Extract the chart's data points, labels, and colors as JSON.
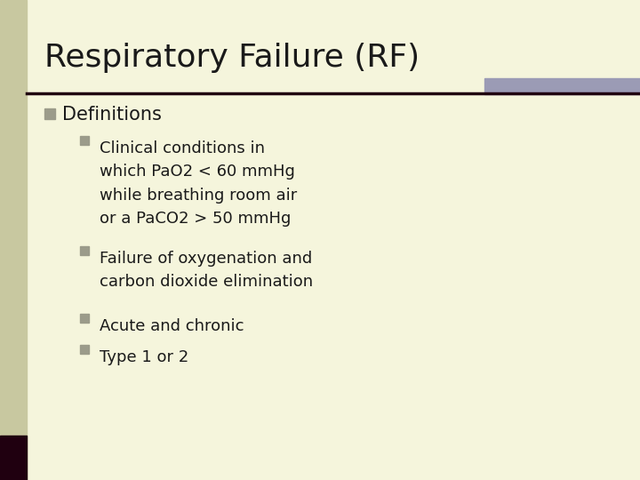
{
  "title": "Respiratory Failure (RF)",
  "background_color": "#f5f5dc",
  "left_bar_color": "#c8c8a0",
  "left_bar_dark": "#200010",
  "top_right_bar_color": "#9b9bb5",
  "separator_color": "#200010",
  "title_color": "#1a1a1a",
  "title_fontsize": 26,
  "bullet1_color": "#9b9b8a",
  "bullet2_color": "#9b9b8a",
  "text_color": "#1a1a1a",
  "main_bullet": "Definitions",
  "sub_bullets": [
    "Clinical conditions in\nwhich PaO2 < 60 mmHg\nwhile breathing room air\nor a PaCO2 > 50 mmHg",
    "Failure of oxygenation and\ncarbon dioxide elimination",
    "Acute and chronic",
    "Type 1 or 2"
  ],
  "fig_width": 7.2,
  "fig_height": 5.4,
  "dpi": 100
}
